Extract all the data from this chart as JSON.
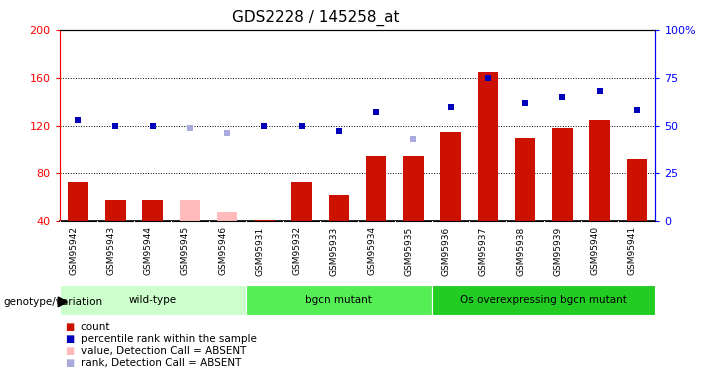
{
  "title": "GDS2228 / 145258_at",
  "samples": [
    "GSM95942",
    "GSM95943",
    "GSM95944",
    "GSM95945",
    "GSM95946",
    "GSM95931",
    "GSM95932",
    "GSM95933",
    "GSM95934",
    "GSM95935",
    "GSM95936",
    "GSM95937",
    "GSM95938",
    "GSM95939",
    "GSM95940",
    "GSM95941"
  ],
  "count_values": [
    73,
    58,
    58,
    58,
    48,
    41,
    73,
    62,
    95,
    95,
    115,
    165,
    110,
    118,
    125,
    92
  ],
  "count_absent": [
    false,
    false,
    false,
    true,
    true,
    false,
    false,
    false,
    false,
    false,
    false,
    false,
    false,
    false,
    false,
    false
  ],
  "rank_values": [
    53,
    50,
    50,
    49,
    46,
    50,
    50,
    47,
    57,
    43,
    60,
    75,
    62,
    65,
    68,
    58
  ],
  "rank_absent": [
    false,
    false,
    false,
    true,
    true,
    false,
    false,
    false,
    false,
    true,
    false,
    false,
    false,
    false,
    false,
    false
  ],
  "ylim_left": [
    40,
    200
  ],
  "ylim_right": [
    0,
    100
  ],
  "yticks_left": [
    40,
    80,
    120,
    160,
    200
  ],
  "yticks_right": [
    0,
    25,
    50,
    75,
    100
  ],
  "ytick_labels_left": [
    "40",
    "80",
    "120",
    "160",
    "200"
  ],
  "ytick_labels_right": [
    "0",
    "25",
    "50",
    "75",
    "100%"
  ],
  "groups": [
    {
      "label": "wild-type",
      "start": 0,
      "end": 5,
      "color": "#ccffcc"
    },
    {
      "label": "bgcn mutant",
      "start": 5,
      "end": 10,
      "color": "#55ee55"
    },
    {
      "label": "Os overexpressing bgcn mutant",
      "start": 10,
      "end": 16,
      "color": "#22cc22"
    }
  ],
  "bar_color_present": "#cc1100",
  "bar_color_absent": "#ffbbbb",
  "rank_color_present": "#0000bb",
  "rank_color_absent": "#aaaadd",
  "bg_color_samples": "#cccccc",
  "legend_items": [
    {
      "label": "count",
      "color": "#cc1100"
    },
    {
      "label": "percentile rank within the sample",
      "color": "#0000bb"
    },
    {
      "label": "value, Detection Call = ABSENT",
      "color": "#ffbbbb"
    },
    {
      "label": "rank, Detection Call = ABSENT",
      "color": "#aaaadd"
    }
  ]
}
